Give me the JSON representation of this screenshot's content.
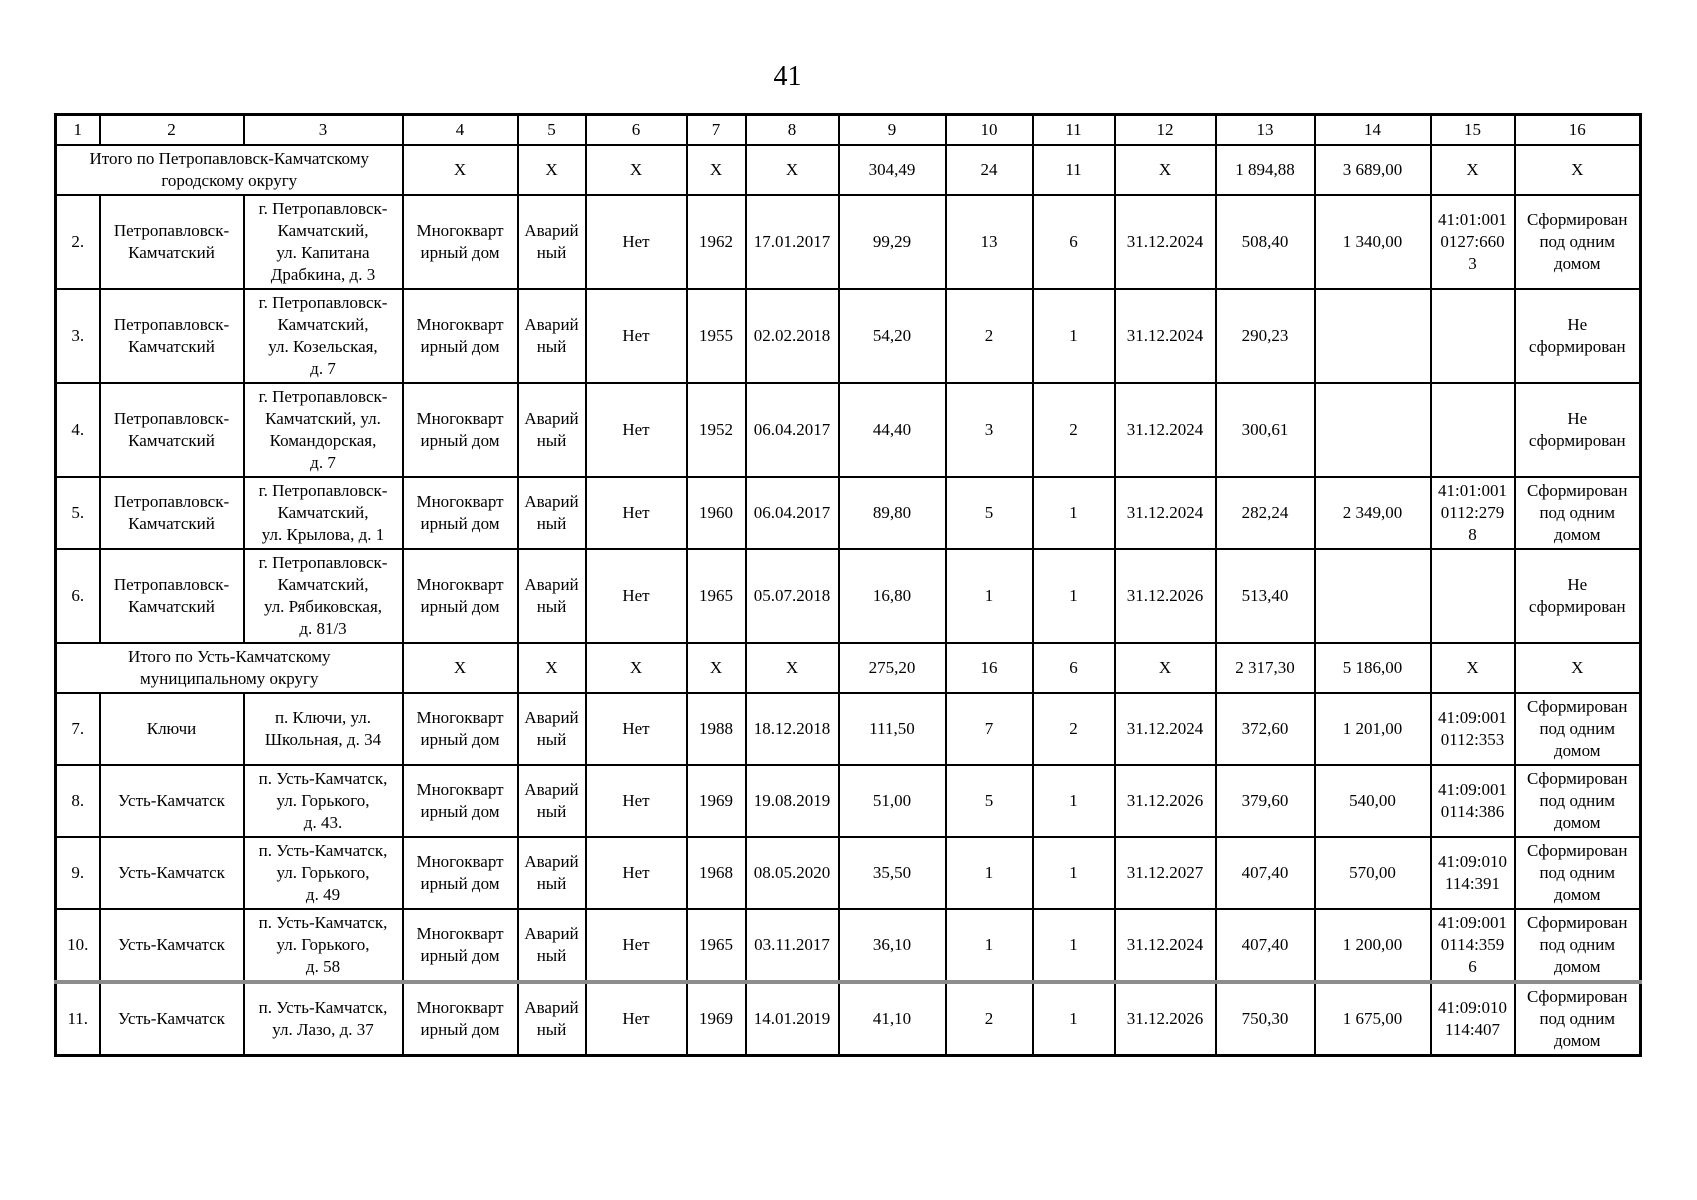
{
  "page": {
    "number": "41"
  },
  "table": {
    "column_numbers": [
      "1",
      "2",
      "3",
      "4",
      "5",
      "6",
      "7",
      "8",
      "9",
      "10",
      "11",
      "12",
      "13",
      "14",
      "15",
      "16"
    ],
    "sections": [
      {
        "total": {
          "label": "Итого по Петропавловск-Камчатскому\nгородскому округу",
          "values": [
            "X",
            "X",
            "X",
            "X",
            "X",
            "304,49",
            "24",
            "11",
            "X",
            "1 894,88",
            "3 689,00",
            "X",
            "X"
          ]
        },
        "rows": [
          {
            "cells": [
              "2.",
              "Петропавловск-\nКамчатский",
              "г. Петропавловск-\nКамчатский,\nул. Капитана\nДрабкина, д. 3",
              "Многокварт\nирный дом",
              "Аварий\nный",
              "Нет",
              "1962",
              "17.01.2017",
              "99,29",
              "13",
              "6",
              "31.12.2024",
              "508,40",
              "1 340,00",
              "41:01:001\n0127:660\n3",
              "Сформирован\nпод одним\nдомом"
            ]
          },
          {
            "cells": [
              "3.",
              "Петропавловск-\nКамчатский",
              "г. Петропавловск-\nКамчатский,\nул. Козельская,\nд. 7",
              "Многокварт\nирный дом",
              "Аварий\nный",
              "Нет",
              "1955",
              "02.02.2018",
              "54,20",
              "2",
              "1",
              "31.12.2024",
              "290,23",
              "",
              "",
              "Не\nсформирован"
            ]
          },
          {
            "cells": [
              "4.",
              "Петропавловск-\nКамчатский",
              "г. Петропавловск-\nКамчатский, ул.\nКомандорская,\nд. 7",
              "Многокварт\nирный дом",
              "Аварий\nный",
              "Нет",
              "1952",
              "06.04.2017",
              "44,40",
              "3",
              "2",
              "31.12.2024",
              "300,61",
              "",
              "",
              "Не\nсформирован"
            ]
          },
          {
            "cells": [
              "5.",
              "Петропавловск-\nКамчатский",
              "г. Петропавловск-\nКамчатский,\nул. Крылова, д. 1",
              "Многокварт\nирный дом",
              "Аварий\nный",
              "Нет",
              "1960",
              "06.04.2017",
              "89,80",
              "5",
              "1",
              "31.12.2024",
              "282,24",
              "2 349,00",
              "41:01:001\n0112:279\n8",
              "Сформирован\nпод одним\nдомом"
            ]
          },
          {
            "cells": [
              "6.",
              "Петропавловск-\nКамчатский",
              "г. Петропавловск-\nКамчатский,\nул. Рябиковская,\nд. 81/3",
              "Многокварт\nирный дом",
              "Аварий\nный",
              "Нет",
              "1965",
              "05.07.2018",
              "16,80",
              "1",
              "1",
              "31.12.2026",
              "513,40",
              "",
              "",
              "Не\nсформирован"
            ]
          }
        ]
      },
      {
        "total": {
          "label": "Итого по Усть-Камчатскому\nмуниципальному округу",
          "values": [
            "X",
            "X",
            "X",
            "X",
            "X",
            "275,20",
            "16",
            "6",
            "X",
            "2 317,30",
            "5 186,00",
            "X",
            "X"
          ]
        },
        "rows": [
          {
            "cells": [
              "7.",
              "Ключи",
              "п. Ключи, ул.\nШкольная, д. 34",
              "Многокварт\nирный дом",
              "Аварий\nный",
              "Нет",
              "1988",
              "18.12.2018",
              "111,50",
              "7",
              "2",
              "31.12.2024",
              "372,60",
              "1 201,00",
              "41:09:001\n0112:353",
              "Сформирован\nпод одним\nдомом"
            ]
          },
          {
            "cells": [
              "8.",
              "Усть-Камчатск",
              "п. Усть-Камчатск,\nул. Горького,\nд. 43.",
              "Многокварт\nирный дом",
              "Аварий\nный",
              "Нет",
              "1969",
              "19.08.2019",
              "51,00",
              "5",
              "1",
              "31.12.2026",
              "379,60",
              "540,00",
              "41:09:001\n0114:386",
              "Сформирован\nпод одним\nдомом"
            ]
          },
          {
            "cells": [
              "9.",
              "Усть-Камчатск",
              "п. Усть-Камчатск,\nул. Горького,\nд. 49",
              "Многокварт\nирный дом",
              "Аварий\nный",
              "Нет",
              "1968",
              "08.05.2020",
              "35,50",
              "1",
              "1",
              "31.12.2027",
              "407,40",
              "570,00",
              "41:09:010\n114:391",
              "Сформирован\nпод одним\nдомом"
            ]
          },
          {
            "cells": [
              "10.",
              "Усть-Камчатск",
              "п. Усть-Камчатск,\nул. Горького,\nд. 58",
              "Многокварт\nирный дом",
              "Аварий\nный",
              "Нет",
              "1965",
              "03.11.2017",
              "36,10",
              "1",
              "1",
              "31.12.2024",
              "407,40",
              "1 200,00",
              "41:09:001\n0114:359\n6",
              "Сформирован\nпод одним\nдомом"
            ]
          },
          {
            "cells": [
              "11.",
              "Усть-Камчатск",
              "п. Усть-Камчатск,\nул. Лазо, д. 37",
              "Многокварт\nирный дом",
              "Аварий\nный",
              "Нет",
              "1969",
              "14.01.2019",
              "41,10",
              "2",
              "1",
              "31.12.2026",
              "750,30",
              "1 675,00",
              "41:09:010\n114:407",
              "Сформирован\nпод одним\nдомом"
            ]
          }
        ]
      }
    ]
  }
}
